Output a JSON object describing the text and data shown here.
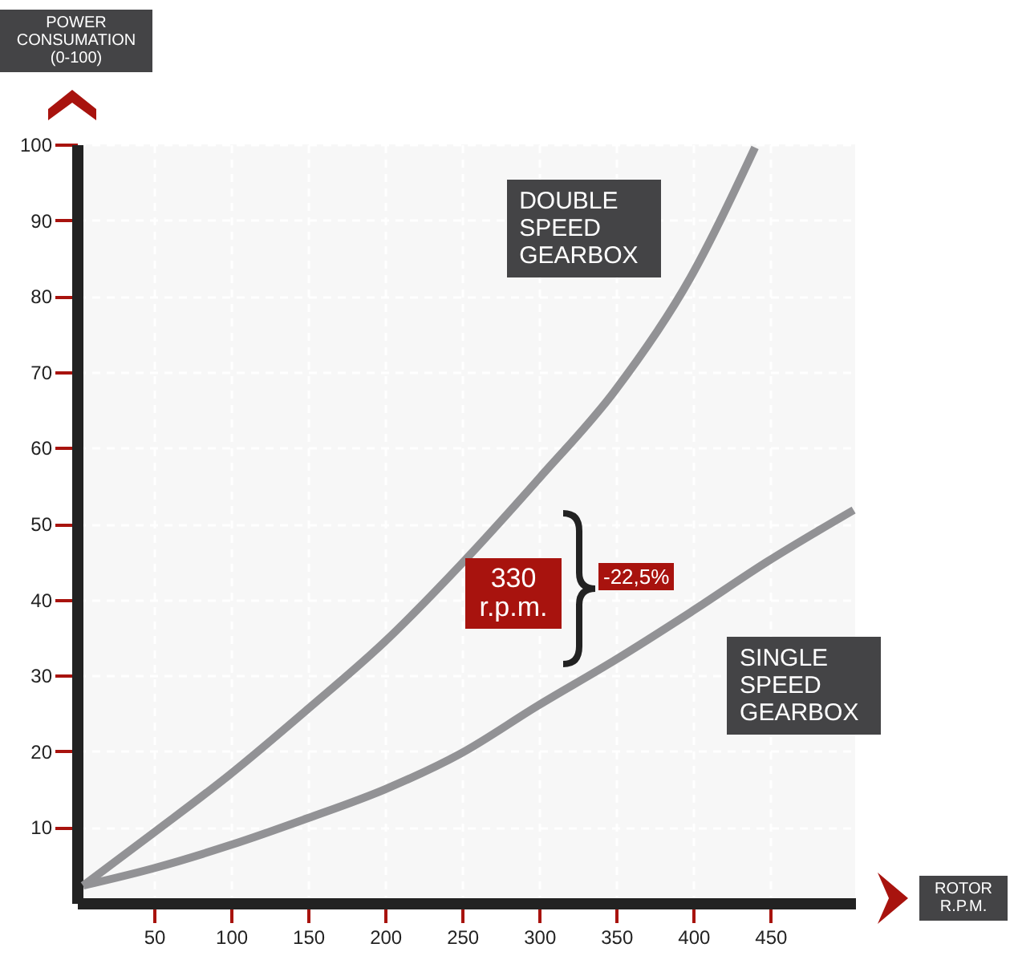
{
  "chart_data": {
    "type": "line",
    "xlabel": "ROTOR R.P.M.",
    "ylabel": "POWER CONSUMATION (0-100)",
    "xlim": [
      0,
      505
    ],
    "ylim": [
      0,
      100
    ],
    "xticks": [
      50,
      100,
      150,
      200,
      250,
      300,
      350,
      400,
      450
    ],
    "yticks": [
      10,
      20,
      30,
      40,
      50,
      60,
      70,
      80,
      90,
      100
    ],
    "grid": true,
    "legend": false,
    "marker": "none",
    "line_style": "solid",
    "series": [
      {
        "name": "DOUBLE SPEED GEARBOX",
        "color": "#929295",
        "x": [
          4,
          50,
          99,
          150,
          200,
          249,
          300,
          349,
          398,
          440
        ],
        "values": [
          2.3,
          9.3,
          16.9,
          25.6,
          34.5,
          44.6,
          56,
          67.5,
          82.4,
          99.6
        ]
      },
      {
        "name": "SINGLE SPEED GEARBOX",
        "color": "#929295",
        "x": [
          4,
          50,
          99,
          150,
          200,
          249,
          299,
          349,
          398,
          448,
          504
        ],
        "values": [
          2.3,
          4.6,
          7.6,
          11.2,
          15,
          19.7,
          26,
          32,
          38.3,
          45,
          51.8
        ]
      }
    ],
    "annotations": [
      "330 r.p.m.",
      "-22,5%"
    ]
  }
}
